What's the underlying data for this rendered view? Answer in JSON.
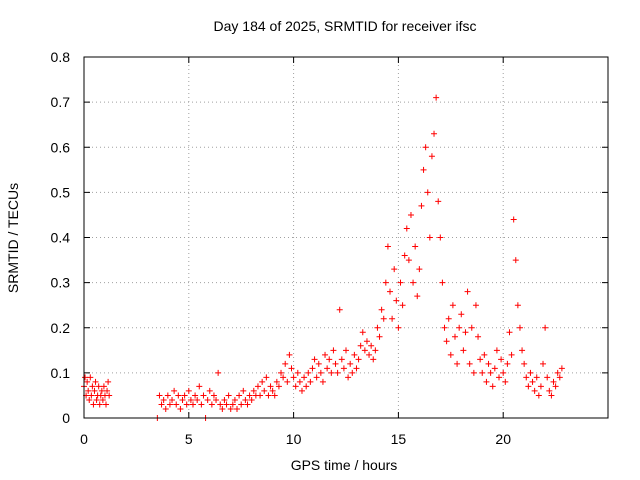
{
  "chart_data": {
    "type": "scatter",
    "title": "Day 184 of 2025, SRMTID for receiver ifsc",
    "xlabel": "GPS time / hours",
    "ylabel": "SRMTID / TECUs",
    "xlim": [
      0,
      25
    ],
    "ylim": [
      0,
      0.8
    ],
    "xticks": [
      0,
      5,
      10,
      15,
      20
    ],
    "yticks": [
      0,
      0.1,
      0.2,
      0.3,
      0.4,
      0.5,
      0.6,
      0.7,
      0.8
    ],
    "grid": true,
    "marker": "plus",
    "color": "#ff0000",
    "series": [
      {
        "name": "SRMTID",
        "points": [
          [
            0.0,
            0.07
          ],
          [
            0.05,
            0.09
          ],
          [
            0.1,
            0.05
          ],
          [
            0.15,
            0.08
          ],
          [
            0.2,
            0.06
          ],
          [
            0.25,
            0.04
          ],
          [
            0.3,
            0.09
          ],
          [
            0.35,
            0.05
          ],
          [
            0.4,
            0.07
          ],
          [
            0.45,
            0.03
          ],
          [
            0.5,
            0.06
          ],
          [
            0.55,
            0.08
          ],
          [
            0.6,
            0.04
          ],
          [
            0.65,
            0.05
          ],
          [
            0.7,
            0.07
          ],
          [
            0.75,
            0.03
          ],
          [
            0.8,
            0.05
          ],
          [
            0.85,
            0.06
          ],
          [
            0.9,
            0.04
          ],
          [
            0.95,
            0.07
          ],
          [
            1.0,
            0.05
          ],
          [
            1.05,
            0.03
          ],
          [
            1.1,
            0.06
          ],
          [
            1.15,
            0.08
          ],
          [
            1.2,
            0.05
          ],
          [
            3.5,
            0.0
          ],
          [
            3.6,
            0.05
          ],
          [
            3.7,
            0.03
          ],
          [
            3.8,
            0.04
          ],
          [
            3.9,
            0.02
          ],
          [
            4.0,
            0.05
          ],
          [
            4.1,
            0.03
          ],
          [
            4.2,
            0.04
          ],
          [
            4.3,
            0.06
          ],
          [
            4.4,
            0.03
          ],
          [
            4.5,
            0.05
          ],
          [
            4.6,
            0.02
          ],
          [
            4.7,
            0.04
          ],
          [
            4.8,
            0.05
          ],
          [
            4.9,
            0.03
          ],
          [
            5.0,
            0.06
          ],
          [
            5.1,
            0.04
          ],
          [
            5.2,
            0.03
          ],
          [
            5.3,
            0.05
          ],
          [
            5.4,
            0.04
          ],
          [
            5.5,
            0.07
          ],
          [
            5.6,
            0.03
          ],
          [
            5.7,
            0.05
          ],
          [
            5.8,
            0.0
          ],
          [
            5.9,
            0.04
          ],
          [
            6.0,
            0.06
          ],
          [
            6.1,
            0.03
          ],
          [
            6.2,
            0.05
          ],
          [
            6.3,
            0.04
          ],
          [
            6.4,
            0.1
          ],
          [
            6.5,
            0.03
          ],
          [
            6.6,
            0.02
          ],
          [
            6.7,
            0.04
          ],
          [
            6.8,
            0.03
          ],
          [
            6.9,
            0.05
          ],
          [
            7.0,
            0.02
          ],
          [
            7.1,
            0.03
          ],
          [
            7.2,
            0.04
          ],
          [
            7.3,
            0.02
          ],
          [
            7.4,
            0.05
          ],
          [
            7.5,
            0.03
          ],
          [
            7.6,
            0.06
          ],
          [
            7.7,
            0.04
          ],
          [
            7.8,
            0.03
          ],
          [
            7.9,
            0.05
          ],
          [
            8.0,
            0.04
          ],
          [
            8.1,
            0.06
          ],
          [
            8.2,
            0.05
          ],
          [
            8.3,
            0.07
          ],
          [
            8.4,
            0.05
          ],
          [
            8.5,
            0.08
          ],
          [
            8.6,
            0.06
          ],
          [
            8.7,
            0.09
          ],
          [
            8.8,
            0.05
          ],
          [
            8.9,
            0.07
          ],
          [
            9.0,
            0.06
          ],
          [
            9.1,
            0.05
          ],
          [
            9.2,
            0.08
          ],
          [
            9.3,
            0.07
          ],
          [
            9.4,
            0.1
          ],
          [
            9.5,
            0.09
          ],
          [
            9.6,
            0.12
          ],
          [
            9.7,
            0.08
          ],
          [
            9.8,
            0.14
          ],
          [
            9.9,
            0.11
          ],
          [
            10.0,
            0.09
          ],
          [
            10.1,
            0.07
          ],
          [
            10.2,
            0.1
          ],
          [
            10.3,
            0.08
          ],
          [
            10.4,
            0.06
          ],
          [
            10.5,
            0.09
          ],
          [
            10.6,
            0.07
          ],
          [
            10.7,
            0.1
          ],
          [
            10.8,
            0.08
          ],
          [
            10.9,
            0.11
          ],
          [
            11.0,
            0.13
          ],
          [
            11.1,
            0.09
          ],
          [
            11.2,
            0.12
          ],
          [
            11.3,
            0.1
          ],
          [
            11.4,
            0.08
          ],
          [
            11.5,
            0.14
          ],
          [
            11.6,
            0.11
          ],
          [
            11.7,
            0.13
          ],
          [
            11.8,
            0.1
          ],
          [
            11.9,
            0.15
          ],
          [
            12.0,
            0.12
          ],
          [
            12.1,
            0.1
          ],
          [
            12.2,
            0.24
          ],
          [
            12.3,
            0.13
          ],
          [
            12.4,
            0.11
          ],
          [
            12.5,
            0.15
          ],
          [
            12.6,
            0.09
          ],
          [
            12.7,
            0.12
          ],
          [
            12.8,
            0.1
          ],
          [
            12.9,
            0.14
          ],
          [
            13.0,
            0.11
          ],
          [
            13.1,
            0.13
          ],
          [
            13.2,
            0.16
          ],
          [
            13.3,
            0.19
          ],
          [
            13.4,
            0.15
          ],
          [
            13.5,
            0.17
          ],
          [
            13.6,
            0.14
          ],
          [
            13.7,
            0.16
          ],
          [
            13.8,
            0.13
          ],
          [
            13.9,
            0.15
          ],
          [
            14.0,
            0.2
          ],
          [
            14.1,
            0.18
          ],
          [
            14.2,
            0.24
          ],
          [
            14.3,
            0.22
          ],
          [
            14.4,
            0.3
          ],
          [
            14.5,
            0.38
          ],
          [
            14.6,
            0.28
          ],
          [
            14.7,
            0.22
          ],
          [
            14.8,
            0.33
          ],
          [
            14.9,
            0.26
          ],
          [
            15.0,
            0.2
          ],
          [
            15.1,
            0.3
          ],
          [
            15.2,
            0.25
          ],
          [
            15.3,
            0.36
          ],
          [
            15.4,
            0.42
          ],
          [
            15.5,
            0.35
          ],
          [
            15.6,
            0.45
          ],
          [
            15.7,
            0.3
          ],
          [
            15.8,
            0.38
          ],
          [
            15.9,
            0.27
          ],
          [
            16.0,
            0.33
          ],
          [
            16.1,
            0.47
          ],
          [
            16.2,
            0.55
          ],
          [
            16.3,
            0.6
          ],
          [
            16.4,
            0.5
          ],
          [
            16.5,
            0.4
          ],
          [
            16.6,
            0.58
          ],
          [
            16.7,
            0.63
          ],
          [
            16.8,
            0.71
          ],
          [
            16.9,
            0.48
          ],
          [
            17.0,
            0.4
          ],
          [
            17.1,
            0.3
          ],
          [
            17.2,
            0.2
          ],
          [
            17.3,
            0.17
          ],
          [
            17.4,
            0.22
          ],
          [
            17.5,
            0.14
          ],
          [
            17.6,
            0.25
          ],
          [
            17.7,
            0.18
          ],
          [
            17.8,
            0.12
          ],
          [
            17.9,
            0.2
          ],
          [
            18.0,
            0.23
          ],
          [
            18.1,
            0.15
          ],
          [
            18.2,
            0.19
          ],
          [
            18.3,
            0.28
          ],
          [
            18.4,
            0.12
          ],
          [
            18.5,
            0.2
          ],
          [
            18.6,
            0.1
          ],
          [
            18.7,
            0.25
          ],
          [
            18.8,
            0.18
          ],
          [
            18.9,
            0.13
          ],
          [
            19.0,
            0.1
          ],
          [
            19.1,
            0.14
          ],
          [
            19.2,
            0.08
          ],
          [
            19.3,
            0.12
          ],
          [
            19.4,
            0.1
          ],
          [
            19.5,
            0.07
          ],
          [
            19.6,
            0.11
          ],
          [
            19.7,
            0.15
          ],
          [
            19.8,
            0.09
          ],
          [
            19.9,
            0.13
          ],
          [
            20.0,
            0.1
          ],
          [
            20.1,
            0.08
          ],
          [
            20.2,
            0.12
          ],
          [
            20.3,
            0.19
          ],
          [
            20.4,
            0.14
          ],
          [
            20.5,
            0.44
          ],
          [
            20.6,
            0.35
          ],
          [
            20.7,
            0.25
          ],
          [
            20.8,
            0.2
          ],
          [
            20.9,
            0.15
          ],
          [
            21.0,
            0.12
          ],
          [
            21.1,
            0.09
          ],
          [
            21.2,
            0.07
          ],
          [
            21.3,
            0.1
          ],
          [
            21.4,
            0.08
          ],
          [
            21.5,
            0.06
          ],
          [
            21.6,
            0.09
          ],
          [
            21.7,
            0.05
          ],
          [
            21.8,
            0.07
          ],
          [
            21.9,
            0.12
          ],
          [
            22.0,
            0.2
          ],
          [
            22.1,
            0.09
          ],
          [
            22.2,
            0.06
          ],
          [
            22.3,
            0.05
          ],
          [
            22.4,
            0.08
          ],
          [
            22.5,
            0.07
          ],
          [
            22.6,
            0.1
          ],
          [
            22.7,
            0.09
          ],
          [
            22.8,
            0.11
          ]
        ]
      }
    ]
  }
}
